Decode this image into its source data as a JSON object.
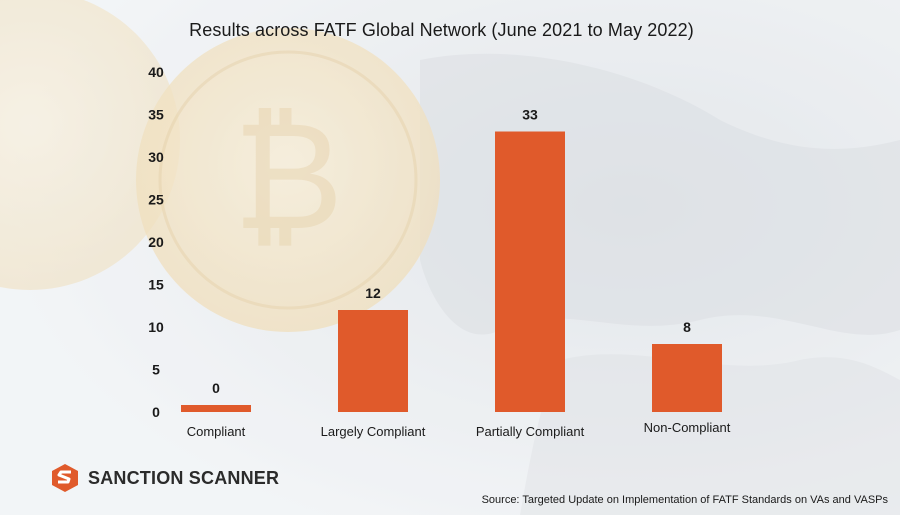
{
  "chart_data": {
    "type": "bar",
    "title": "Results across FATF Global Network (June 2021 to May 2022)",
    "categories": [
      "Compliant",
      "Largely Compliant",
      "Partially Compliant",
      "Non-Compliant"
    ],
    "values": [
      0,
      12,
      33,
      8
    ],
    "ylim": [
      0,
      40
    ],
    "yticks": [
      0,
      5,
      10,
      15,
      20,
      25,
      30,
      35,
      40
    ],
    "xlabel": "",
    "ylabel": "",
    "grid": false,
    "bar_color": "#e05a2b"
  },
  "brand": {
    "name": "SANCTION SCANNER",
    "logo_icon": "sanction-scanner-s-logo",
    "logo_color": "#e05a2b"
  },
  "source_text": "Source: Targeted Update on Implementation of FATF Standards on VAs and VASPs"
}
